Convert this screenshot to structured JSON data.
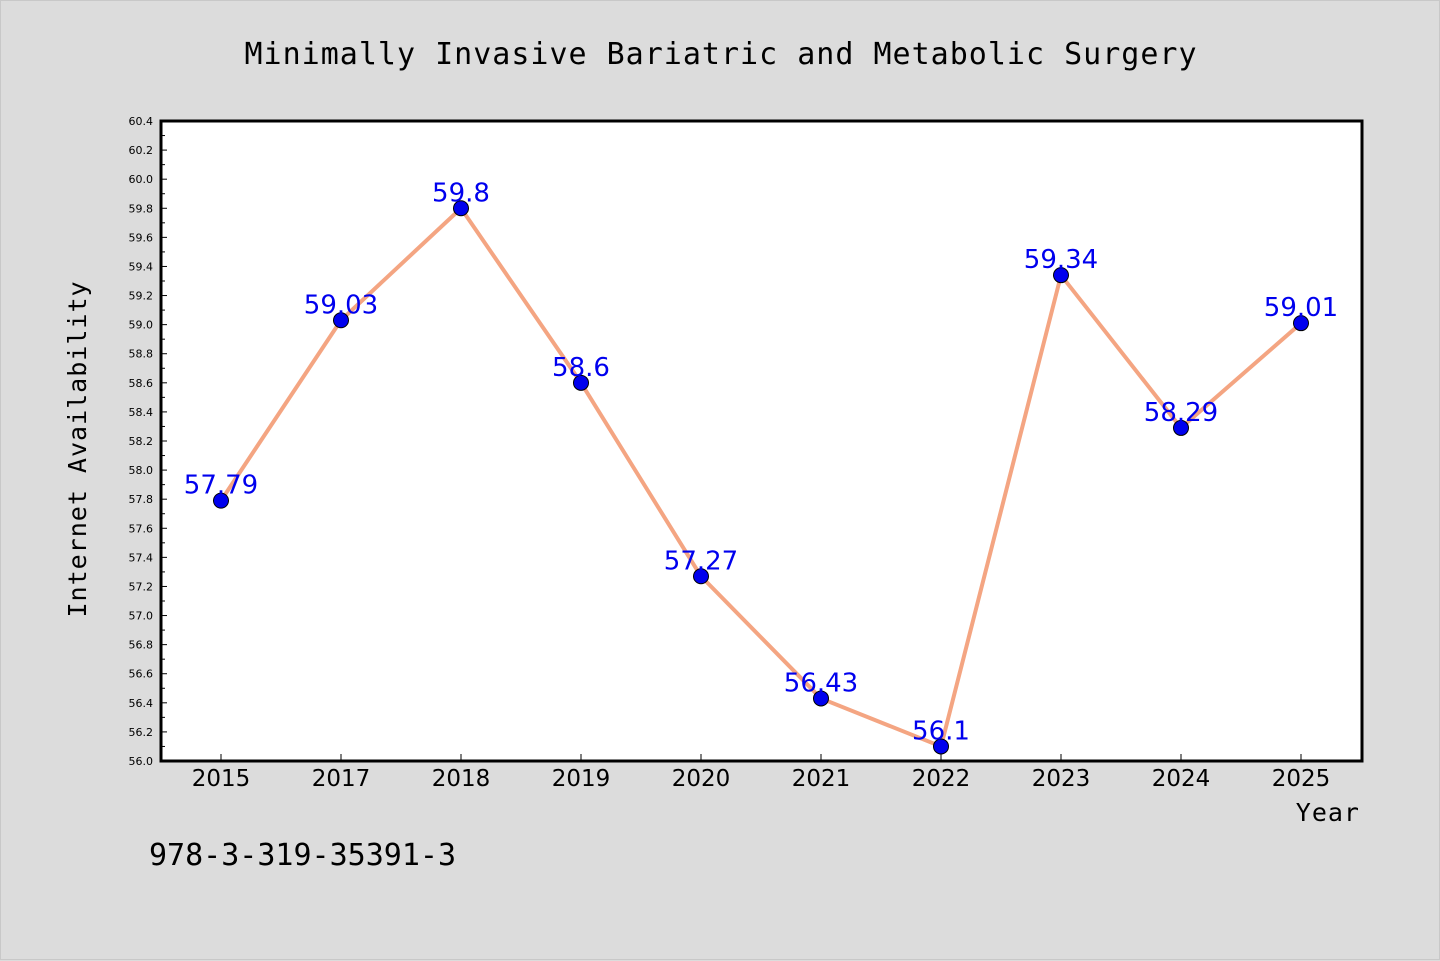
{
  "footer_code": "978-3-319-35391-3",
  "colors": {
    "background": "#dcdcdc",
    "plot_background": "#ffffff",
    "line": "#f4a582",
    "marker": "#0000ee",
    "label": "#0000ee"
  },
  "chart_data": {
    "type": "line",
    "title": "Minimally Invasive Bariatric and Metabolic Surgery",
    "xlabel": "Year",
    "ylabel": "Internet Availability",
    "categories": [
      "2015",
      "2017",
      "2018",
      "2019",
      "2020",
      "2021",
      "2022",
      "2023",
      "2024",
      "2025"
    ],
    "series": [
      {
        "values": [
          57.79,
          59.03,
          59.8,
          58.6,
          57.27,
          56.43,
          56.1,
          59.34,
          58.29,
          59.01
        ],
        "data_labels": [
          "57.79",
          "59.03",
          "59.8",
          "58.6",
          "57.27",
          "56.43",
          "56.1",
          "59.34",
          "58.29",
          "59.01"
        ]
      }
    ],
    "ylim": [
      56.0,
      60.4
    ],
    "yticks": [
      "56.0",
      "56.2",
      "56.4",
      "56.6",
      "56.8",
      "57.0",
      "57.2",
      "57.4",
      "57.6",
      "57.8",
      "58.0",
      "58.2",
      "58.4",
      "58.6",
      "58.8",
      "59.0",
      "59.2",
      "59.4",
      "59.6",
      "59.8",
      "60.0",
      "60.2",
      "60.4"
    ],
    "grid": false,
    "legend": "none"
  }
}
